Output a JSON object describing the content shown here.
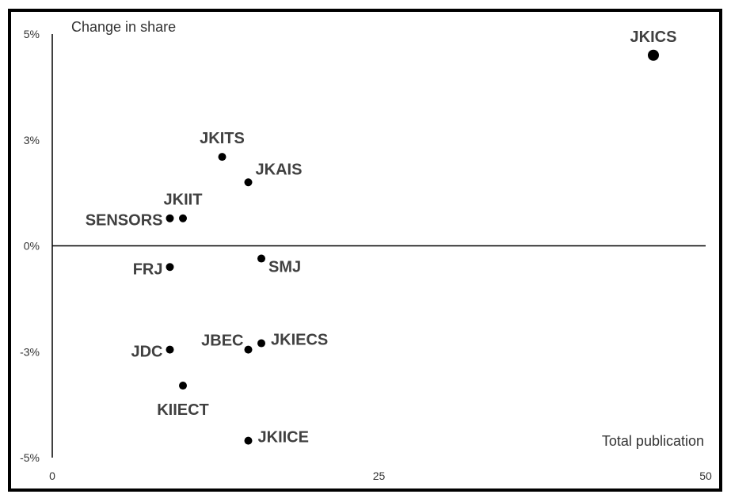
{
  "chart_data": {
    "type": "scatter",
    "ylabel": "Change in share",
    "xlabel": "Total publication",
    "xlim": [
      0,
      50
    ],
    "ylim": [
      -5,
      5
    ],
    "x_ticks": [
      {
        "value": 0,
        "label": "0"
      },
      {
        "value": 25,
        "label": "25"
      },
      {
        "value": 50,
        "label": "50"
      }
    ],
    "y_ticks": [
      {
        "value": 5,
        "label": "5%"
      },
      {
        "value": 2.5,
        "label": "3%"
      },
      {
        "value": 0,
        "label": "0%"
      },
      {
        "value": -2.5,
        "label": "-3%"
      },
      {
        "value": -5,
        "label": "-5%"
      }
    ],
    "grid": false,
    "point_color": "#000000",
    "frame_color": "#000000",
    "points": [
      {
        "label": "JKICS",
        "x": 46,
        "y": 4.5,
        "size": "large",
        "label_pos": "above"
      },
      {
        "label": "JKITS",
        "x": 13,
        "y": 2.1,
        "size": "small",
        "label_pos": "above"
      },
      {
        "label": "JKAIS",
        "x": 15,
        "y": 1.5,
        "size": "small",
        "label_pos": "above-right"
      },
      {
        "label": "JKIIT",
        "x": 10,
        "y": 0.65,
        "size": "small",
        "label_pos": "above"
      },
      {
        "label": "SENSORS",
        "x": 9,
        "y": 0.65,
        "size": "small",
        "label_pos": "left"
      },
      {
        "label": "SMJ",
        "x": 16,
        "y": -0.3,
        "size": "small",
        "label_pos": "right-below"
      },
      {
        "label": "FRJ",
        "x": 9,
        "y": -0.5,
        "size": "small",
        "label_pos": "left"
      },
      {
        "label": "JBEC",
        "x": 15,
        "y": -2.45,
        "size": "small",
        "label_pos": "above-left"
      },
      {
        "label": "JKIECS",
        "x": 16,
        "y": -2.3,
        "size": "small",
        "label_pos": "right"
      },
      {
        "label": "JDC",
        "x": 9,
        "y": -2.45,
        "size": "small",
        "label_pos": "left"
      },
      {
        "label": "KIIECT",
        "x": 10,
        "y": -3.3,
        "size": "small",
        "label_pos": "below"
      },
      {
        "label": "JKIICE",
        "x": 15,
        "y": -4.6,
        "size": "small",
        "label_pos": "right"
      }
    ]
  }
}
